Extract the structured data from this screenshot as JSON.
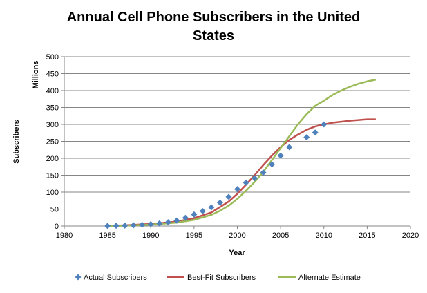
{
  "chart_data": {
    "type": "line",
    "title_lines": [
      "Annual Cell Phone Subscribers in the United",
      "States"
    ],
    "xlabel": "Year",
    "ylabel": "Subscribers",
    "yunit": "Millions",
    "xlim": [
      1980,
      2020
    ],
    "ylim": [
      0,
      500
    ],
    "xticks": [
      1980,
      1985,
      1990,
      1995,
      2000,
      2005,
      2010,
      2015,
      2020
    ],
    "yticks": [
      0,
      50,
      100,
      150,
      200,
      250,
      300,
      350,
      400,
      450,
      500
    ],
    "grid": "horizontal",
    "legend": "bottom",
    "series": [
      {
        "name": "Actual Subscribers",
        "kind": "markers",
        "marker": "diamond",
        "color": "#4f81bd",
        "x": [
          1985,
          1986,
          1987,
          1988,
          1989,
          1990,
          1991,
          1992,
          1993,
          1994,
          1995,
          1996,
          1997,
          1998,
          1999,
          2000,
          2001,
          2002,
          2003,
          2004,
          2005,
          2006,
          2008,
          2009,
          2010
        ],
        "y": [
          0.3,
          0.7,
          1.2,
          2,
          3.5,
          5.3,
          7.6,
          11,
          16,
          24,
          34,
          44,
          55,
          69,
          86,
          109,
          128,
          141,
          158,
          182,
          208,
          233,
          262,
          276,
          300
        ]
      },
      {
        "name": "Best-Fit Subscribers",
        "kind": "line",
        "color": "#c0504d",
        "x": [
          1985,
          1987,
          1990,
          1993,
          1995,
          1997,
          1999,
          2000,
          2001,
          2002,
          2003,
          2004,
          2005,
          2006,
          2007,
          2008,
          2009,
          2010,
          2011,
          2012,
          2013,
          2014,
          2015,
          2016
        ],
        "y": [
          1,
          2,
          6,
          13,
          23,
          40,
          72,
          95,
          122,
          150,
          180,
          208,
          233,
          254,
          270,
          284,
          294,
          300,
          305,
          308,
          311,
          313,
          315,
          315
        ]
      },
      {
        "name": "Alternate Estimate",
        "kind": "line",
        "color": "#9bbb59",
        "x": [
          1985,
          1987,
          1990,
          1993,
          1995,
          1997,
          1998,
          1999,
          2000,
          2001,
          2002,
          2003,
          2004,
          2005,
          2006,
          2007,
          2008,
          2009,
          2010,
          2011,
          2012,
          2013,
          2014,
          2015,
          2016
        ],
        "y": [
          0,
          1,
          4,
          10,
          18,
          33,
          45,
          60,
          80,
          104,
          130,
          160,
          195,
          230,
          265,
          300,
          330,
          355,
          370,
          387,
          400,
          411,
          420,
          427,
          432
        ]
      }
    ]
  }
}
